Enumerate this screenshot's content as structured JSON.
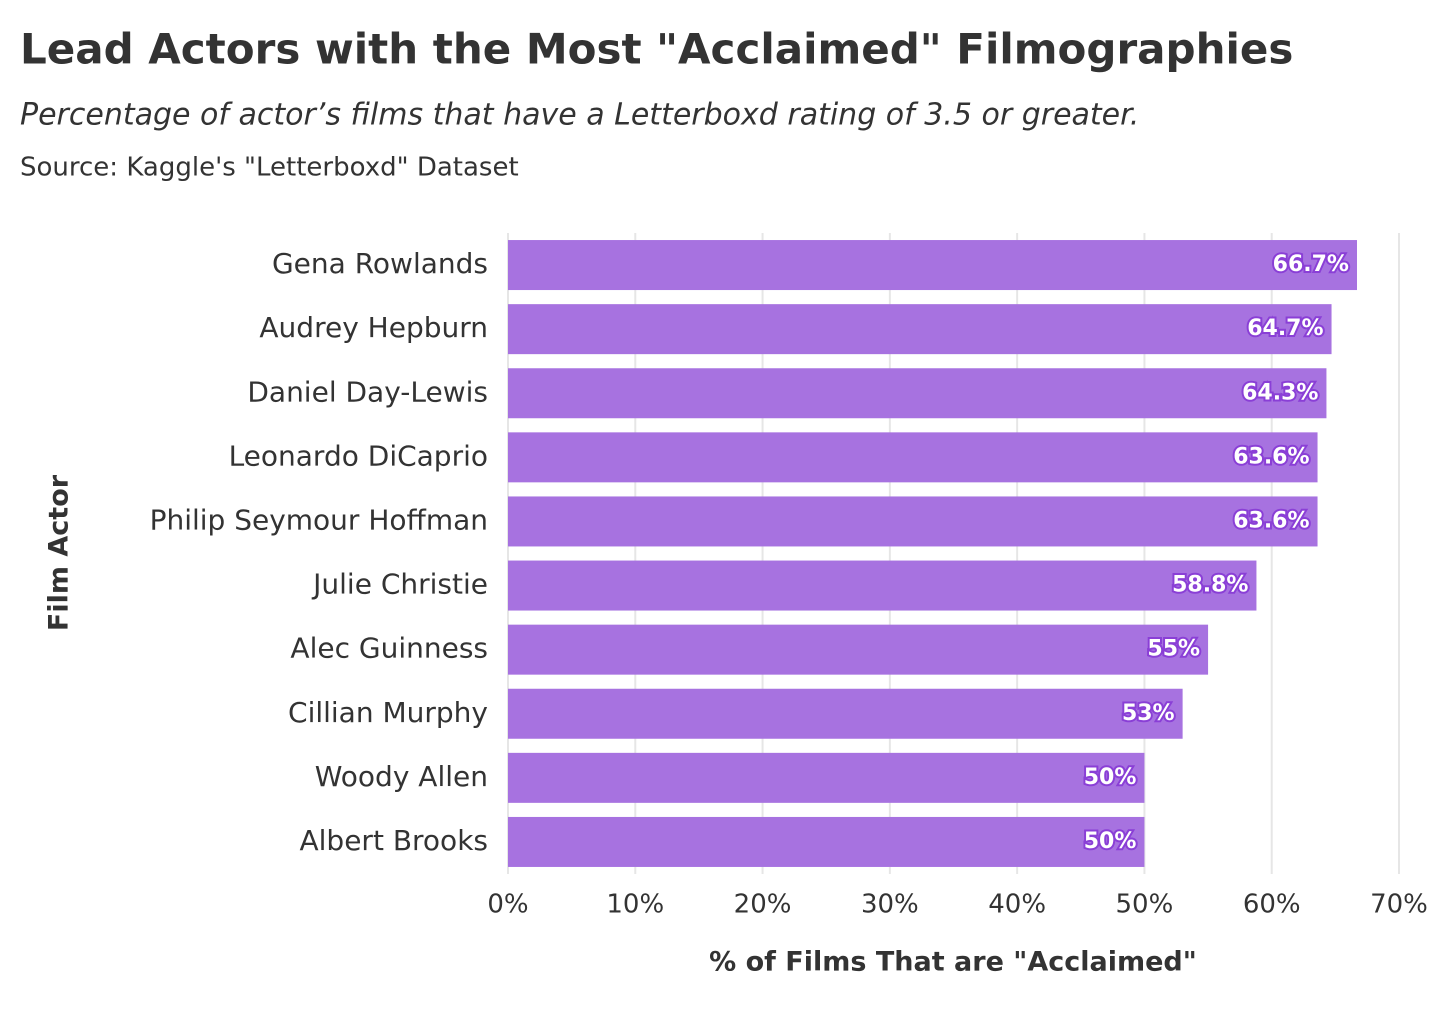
{
  "chart_data": {
    "type": "bar",
    "orientation": "horizontal",
    "title": "Lead Actors with the Most \"Acclaimed\" Filmographies",
    "subtitle": "Percentage of actor’s films that have a Letterboxd rating of 3.5 or greater.",
    "source": "Source: Kaggle's \"Letterboxd\" Dataset",
    "x_label": "% of Films That are \"Acclaimed\"",
    "y_label": "Film Actor",
    "categories": [
      "Gena Rowlands",
      "Audrey Hepburn",
      "Daniel Day-Lewis",
      "Leonardo DiCaprio",
      "Philip Seymour Hoffman",
      "Julie Christie",
      "Alec Guinness",
      "Cillian Murphy",
      "Woody Allen",
      "Albert Brooks"
    ],
    "values": [
      66.7,
      64.7,
      64.3,
      63.6,
      63.6,
      58.8,
      55,
      53,
      50,
      50
    ],
    "value_labels": [
      "66.7%",
      "64.7%",
      "64.3%",
      "63.6%",
      "63.6%",
      "58.8%",
      "55%",
      "53%",
      "50%",
      "50%"
    ],
    "color": "#a772e0",
    "xlim": [
      0,
      70
    ],
    "xticks": [
      {
        "value": 0,
        "label": "0%"
      },
      {
        "value": 10,
        "label": "10%"
      },
      {
        "value": 20,
        "label": "20%"
      },
      {
        "value": 30,
        "label": "30%"
      },
      {
        "value": 40,
        "label": "40%"
      },
      {
        "value": 50,
        "label": "50%"
      },
      {
        "value": 60,
        "label": "60%"
      },
      {
        "value": 70,
        "label": "70%"
      }
    ],
    "grid": true
  }
}
